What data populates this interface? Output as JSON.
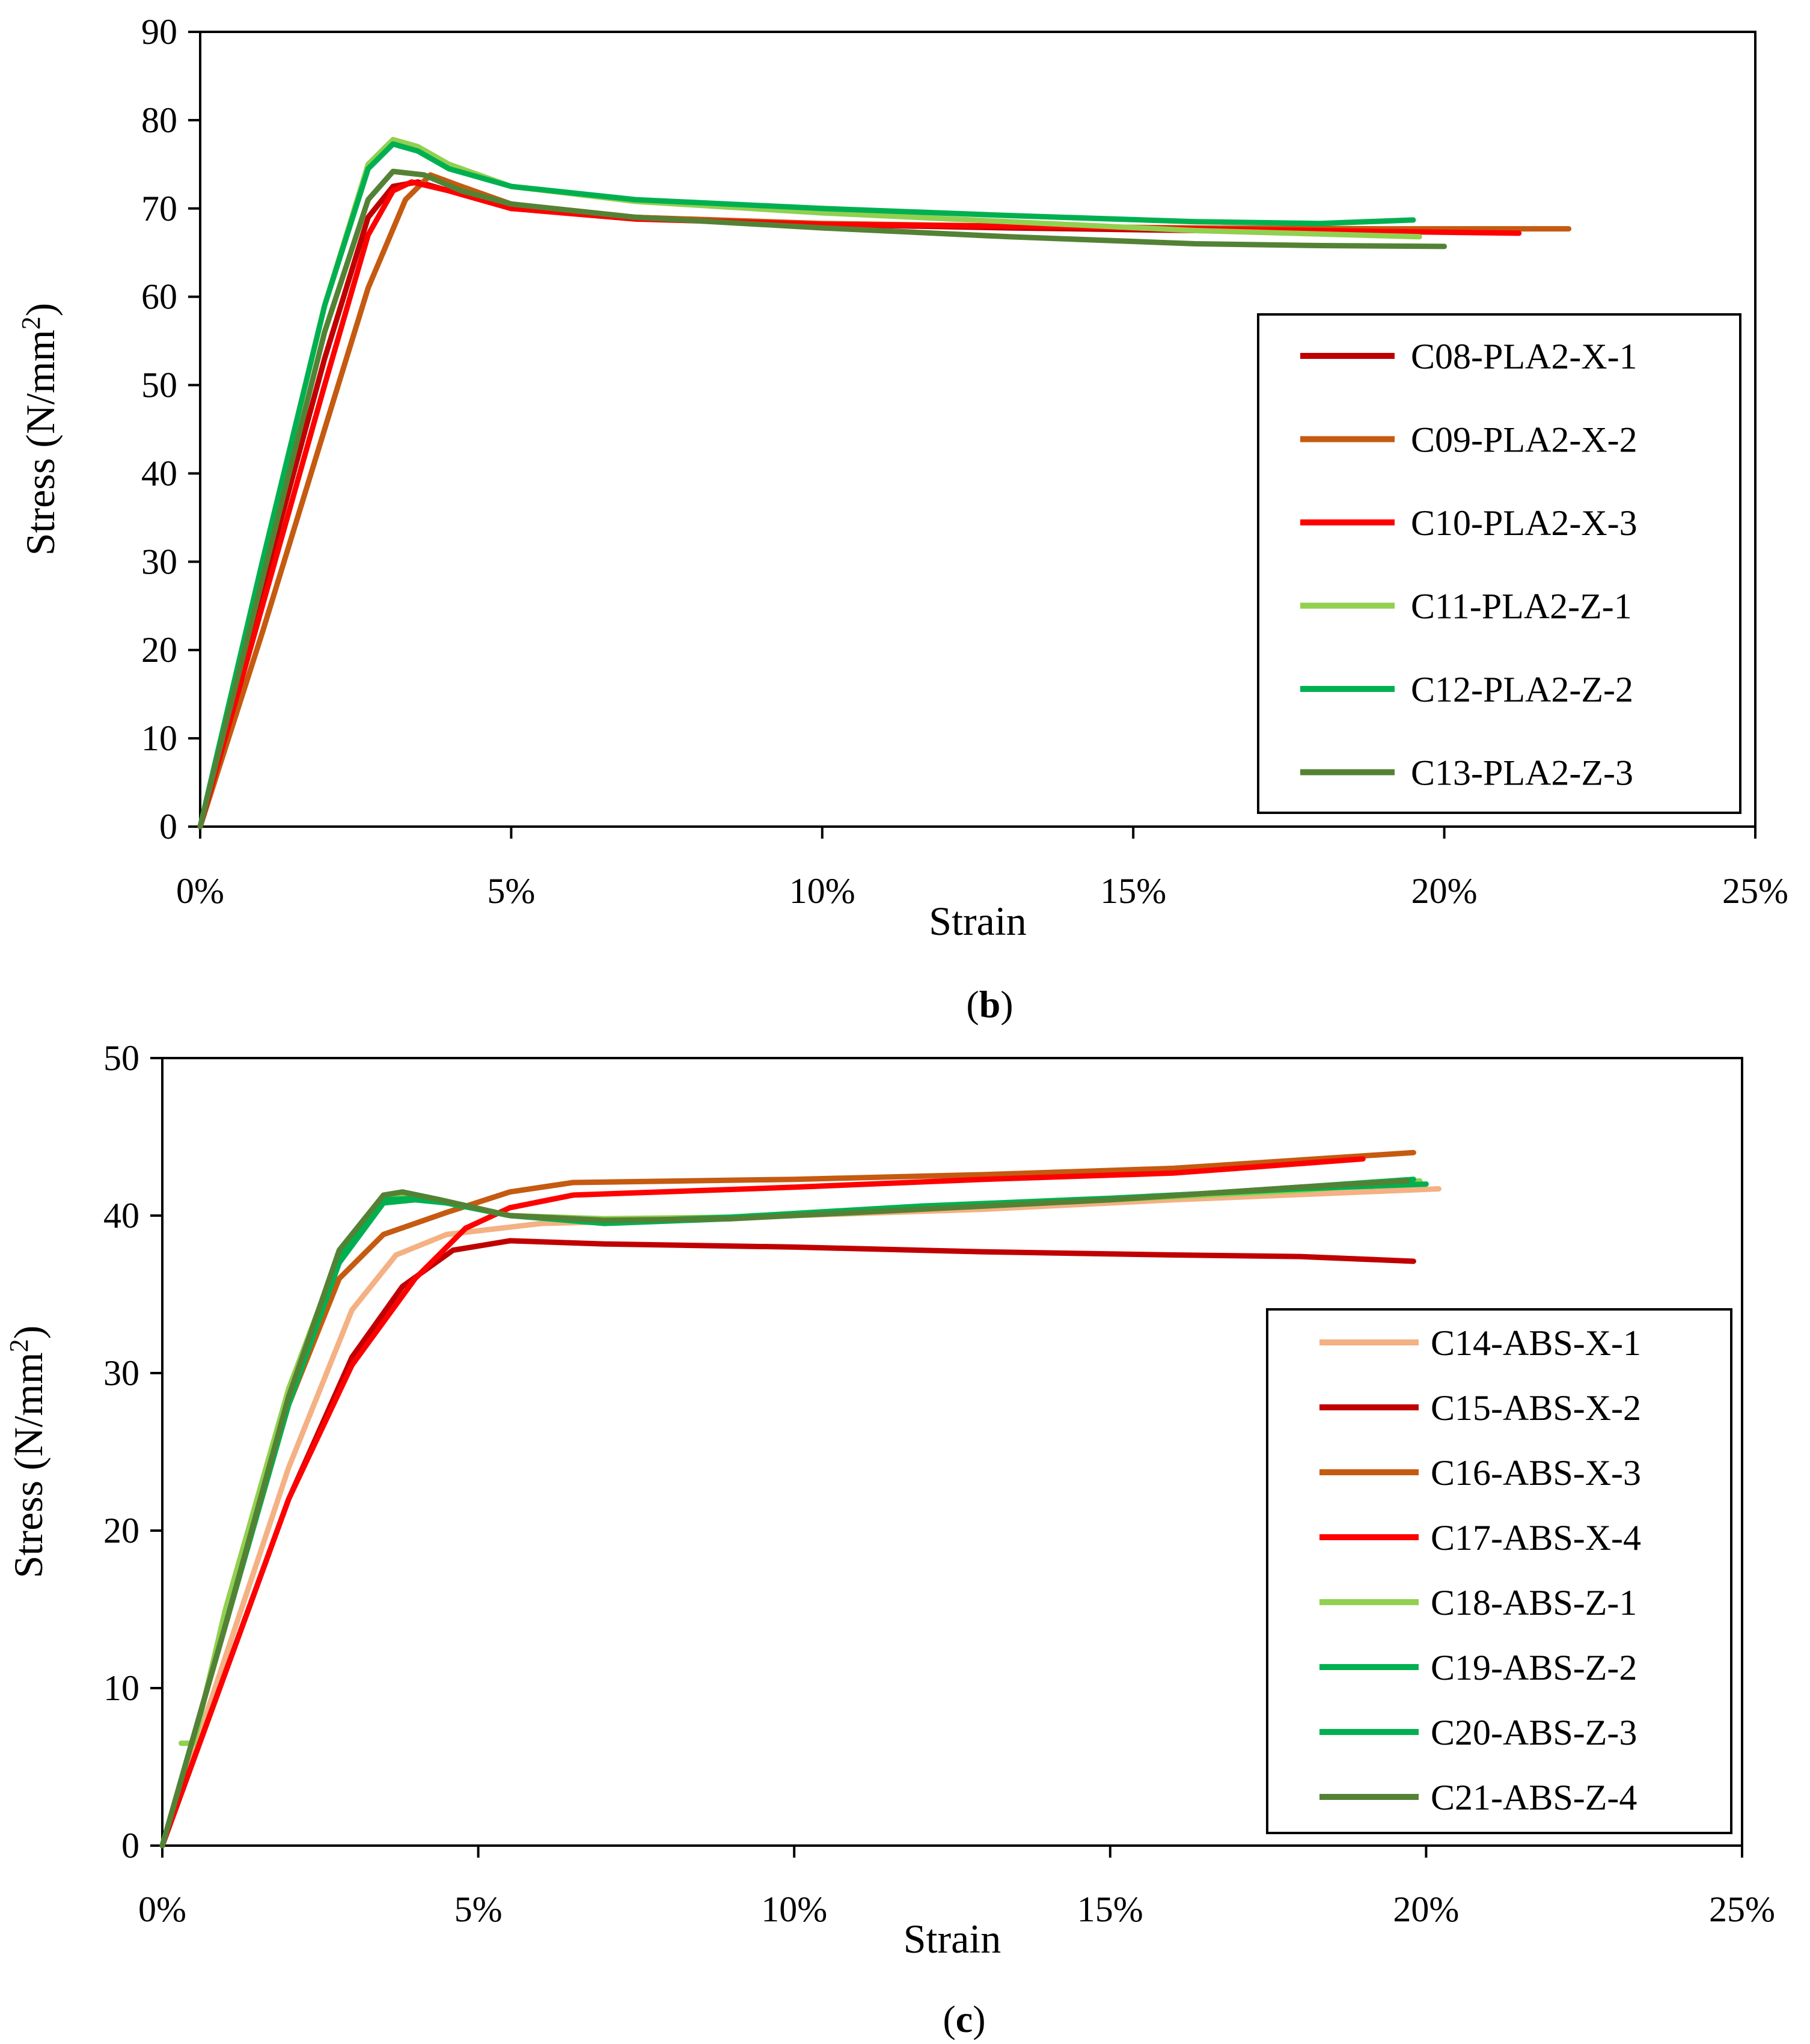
{
  "chart_data": [
    {
      "id": "b",
      "type": "line",
      "panel_label": "b",
      "xlabel": "Strain",
      "ylabel_prefix": "Stress (N/mm",
      "ylabel_sup": "2",
      "ylabel_suffix": ")",
      "xlim": [
        0,
        25
      ],
      "ylim": [
        0,
        90
      ],
      "xticks": [
        0,
        5,
        10,
        15,
        20,
        25
      ],
      "xtick_labels": [
        "0%",
        "5%",
        "10%",
        "15%",
        "20%",
        "25%"
      ],
      "yticks": [
        0,
        10,
        20,
        30,
        40,
        50,
        60,
        70,
        80,
        90
      ],
      "ytick_labels": [
        "0",
        "10",
        "20",
        "30",
        "40",
        "50",
        "60",
        "70",
        "80",
        "90"
      ],
      "grid": false,
      "legend_position": "right",
      "series": [
        {
          "name": "C08-PLA2-X-1",
          "color": "#c00000",
          "points": [
            [
              0,
              0
            ],
            [
              1,
              27
            ],
            [
              2,
              53
            ],
            [
              2.7,
              69
            ],
            [
              3.1,
              72.5
            ],
            [
              3.5,
              73
            ],
            [
              4,
              72
            ],
            [
              5,
              70
            ],
            [
              7,
              69
            ],
            [
              10,
              68.2
            ],
            [
              13,
              67.8
            ],
            [
              16,
              67.5
            ],
            [
              19.4,
              67.3
            ]
          ]
        },
        {
          "name": "C09-PLA2-X-2",
          "color": "#c55a11",
          "points": [
            [
              0,
              0
            ],
            [
              1,
              22
            ],
            [
              2,
              45
            ],
            [
              2.7,
              61
            ],
            [
              3.3,
              71
            ],
            [
              3.7,
              73.8
            ],
            [
              4.2,
              72.5
            ],
            [
              5,
              70.5
            ],
            [
              7,
              69
            ],
            [
              10,
              68.3
            ],
            [
              13,
              68
            ],
            [
              16,
              67.8
            ],
            [
              19,
              67.7
            ],
            [
              22,
              67.7
            ]
          ]
        },
        {
          "name": "C10-PLA2-X-3",
          "color": "#ff0000",
          "points": [
            [
              0,
              0
            ],
            [
              1,
              25
            ],
            [
              2,
              50
            ],
            [
              2.7,
              67
            ],
            [
              3.1,
              72
            ],
            [
              3.4,
              73
            ],
            [
              4,
              72
            ],
            [
              5,
              70
            ],
            [
              7,
              68.8
            ],
            [
              10,
              68.2
            ],
            [
              13,
              68
            ],
            [
              16,
              67.7
            ],
            [
              19,
              67.4
            ],
            [
              21.2,
              67.2
            ]
          ]
        },
        {
          "name": "C11-PLA2-Z-1",
          "color": "#92d050",
          "points": [
            [
              0,
              0
            ],
            [
              1,
              30
            ],
            [
              2,
              59
            ],
            [
              2.7,
              75
            ],
            [
              3.1,
              77.8
            ],
            [
              3.5,
              77
            ],
            [
              4,
              75
            ],
            [
              5,
              72.5
            ],
            [
              7,
              70.8
            ],
            [
              10,
              69.5
            ],
            [
              13,
              68.5
            ],
            [
              16,
              67.5
            ],
            [
              19.6,
              66.8
            ]
          ]
        },
        {
          "name": "C12-PLA2-Z-2",
          "color": "#00b050",
          "points": [
            [
              0,
              0
            ],
            [
              1,
              30
            ],
            [
              2,
              59
            ],
            [
              2.7,
              74.5
            ],
            [
              3.1,
              77.3
            ],
            [
              3.5,
              76.5
            ],
            [
              4,
              74.5
            ],
            [
              5,
              72.5
            ],
            [
              7,
              71
            ],
            [
              10,
              70
            ],
            [
              13,
              69.2
            ],
            [
              16,
              68.5
            ],
            [
              18,
              68.3
            ],
            [
              19.5,
              68.7
            ]
          ]
        },
        {
          "name": "C13-PLA2-Z-3",
          "color": "#548235",
          "points": [
            [
              0,
              0
            ],
            [
              1,
              28
            ],
            [
              2,
              56
            ],
            [
              2.7,
              71
            ],
            [
              3.1,
              74.2
            ],
            [
              3.6,
              73.8
            ],
            [
              4.2,
              72
            ],
            [
              5,
              70.5
            ],
            [
              7,
              69
            ],
            [
              10,
              67.8
            ],
            [
              13,
              66.8
            ],
            [
              16,
              66
            ],
            [
              18,
              65.8
            ],
            [
              20,
              65.7
            ]
          ]
        }
      ]
    },
    {
      "id": "c",
      "type": "line",
      "panel_label": "c",
      "xlabel": "Strain",
      "ylabel_prefix": "Stress (N/mm",
      "ylabel_sup": "2",
      "ylabel_suffix": ")",
      "xlim": [
        0,
        25
      ],
      "ylim": [
        0,
        50
      ],
      "xticks": [
        0,
        5,
        10,
        15,
        20,
        25
      ],
      "xtick_labels": [
        "0%",
        "5%",
        "10%",
        "15%",
        "20%",
        "25%"
      ],
      "yticks": [
        0,
        10,
        20,
        30,
        40,
        50
      ],
      "ytick_labels": [
        "0",
        "10",
        "20",
        "30",
        "40",
        "50"
      ],
      "grid": false,
      "legend_position": "right",
      "series": [
        {
          "name": "C14-ABS-X-1",
          "color": "#f4b183",
          "points": [
            [
              0,
              0
            ],
            [
              1,
              12
            ],
            [
              2,
              24
            ],
            [
              3,
              34
            ],
            [
              3.7,
              37.5
            ],
            [
              4.5,
              38.8
            ],
            [
              6,
              39.5
            ],
            [
              8,
              39.7
            ],
            [
              10,
              40
            ],
            [
              13,
              40.4
            ],
            [
              16,
              41
            ],
            [
              20.2,
              41.7
            ]
          ]
        },
        {
          "name": "C15-ABS-X-2",
          "color": "#c00000",
          "points": [
            [
              0,
              0
            ],
            [
              1,
              11
            ],
            [
              2,
              22
            ],
            [
              3,
              31
            ],
            [
              3.8,
              35.5
            ],
            [
              4.6,
              37.8
            ],
            [
              5.5,
              38.4
            ],
            [
              7,
              38.2
            ],
            [
              10,
              38
            ],
            [
              13,
              37.7
            ],
            [
              16,
              37.5
            ],
            [
              18,
              37.4
            ],
            [
              19.8,
              37.1
            ]
          ]
        },
        {
          "name": "C16-ABS-X-3",
          "color": "#c55a11",
          "points": [
            [
              0,
              0
            ],
            [
              1,
              14
            ],
            [
              2,
              28
            ],
            [
              2.8,
              36
            ],
            [
              3.5,
              38.8
            ],
            [
              4.5,
              40.2
            ],
            [
              5.5,
              41.5
            ],
            [
              6.5,
              42.1
            ],
            [
              10,
              42.3
            ],
            [
              13,
              42.6
            ],
            [
              16,
              43
            ],
            [
              19.8,
              44
            ]
          ]
        },
        {
          "name": "C17-ABS-X-4",
          "color": "#ff0000",
          "points": [
            [
              0,
              0
            ],
            [
              1,
              11
            ],
            [
              2,
              22
            ],
            [
              3,
              30.5
            ],
            [
              4,
              36
            ],
            [
              4.8,
              39.2
            ],
            [
              5.5,
              40.5
            ],
            [
              6.5,
              41.3
            ],
            [
              10,
              41.8
            ],
            [
              13,
              42.3
            ],
            [
              16,
              42.7
            ],
            [
              19,
              43.6
            ]
          ]
        },
        {
          "name": "C18-ABS-Z-1",
          "color": "#92d050",
          "points": [
            [
              0.3,
              6.5
            ],
            [
              0.5,
              6.5
            ],
            [
              1,
              15
            ],
            [
              2,
              29
            ],
            [
              2.8,
              37.5
            ],
            [
              3.5,
              41
            ],
            [
              4,
              41.3
            ],
            [
              4.5,
              40.8
            ],
            [
              5.5,
              40
            ],
            [
              7,
              39.8
            ],
            [
              9,
              39.9
            ],
            [
              12,
              40.5
            ],
            [
              15,
              41
            ],
            [
              18,
              41.6
            ],
            [
              19.9,
              42.2
            ]
          ]
        },
        {
          "name": "C19-ABS-Z-2",
          "color": "#00b050",
          "points": [
            [
              0,
              0
            ],
            [
              1,
              14
            ],
            [
              2,
              28
            ],
            [
              2.8,
              37
            ],
            [
              3.5,
              40.8
            ],
            [
              4,
              41
            ],
            [
              4.5,
              40.8
            ],
            [
              5.5,
              40
            ],
            [
              7,
              39.5
            ],
            [
              9,
              39.8
            ],
            [
              12,
              40.5
            ],
            [
              15,
              41
            ],
            [
              18,
              41.8
            ],
            [
              19.8,
              42.3
            ]
          ]
        },
        {
          "name": "C20-ABS-Z-3",
          "color": "#00b050",
          "points": [
            [
              0,
              0
            ],
            [
              1,
              14
            ],
            [
              2,
              28.5
            ],
            [
              2.8,
              37.3
            ],
            [
              3.5,
              41
            ],
            [
              4,
              41.1
            ],
            [
              4.5,
              40.8
            ],
            [
              5.5,
              40
            ],
            [
              7,
              39.6
            ],
            [
              9,
              39.9
            ],
            [
              12,
              40.6
            ],
            [
              15,
              41.1
            ],
            [
              18,
              41.7
            ],
            [
              20,
              42
            ]
          ]
        },
        {
          "name": "C21-ABS-Z-4",
          "color": "#548235",
          "points": [
            [
              0,
              0
            ],
            [
              1,
              14
            ],
            [
              2,
              28.5
            ],
            [
              2.8,
              37.8
            ],
            [
              3.5,
              41.3
            ],
            [
              3.8,
              41.5
            ],
            [
              4.4,
              41
            ],
            [
              5.5,
              40
            ],
            [
              7,
              39.7
            ],
            [
              9,
              39.8
            ],
            [
              12,
              40.4
            ],
            [
              15,
              41
            ],
            [
              18,
              41.8
            ],
            [
              19.7,
              42.2
            ]
          ]
        }
      ]
    }
  ]
}
